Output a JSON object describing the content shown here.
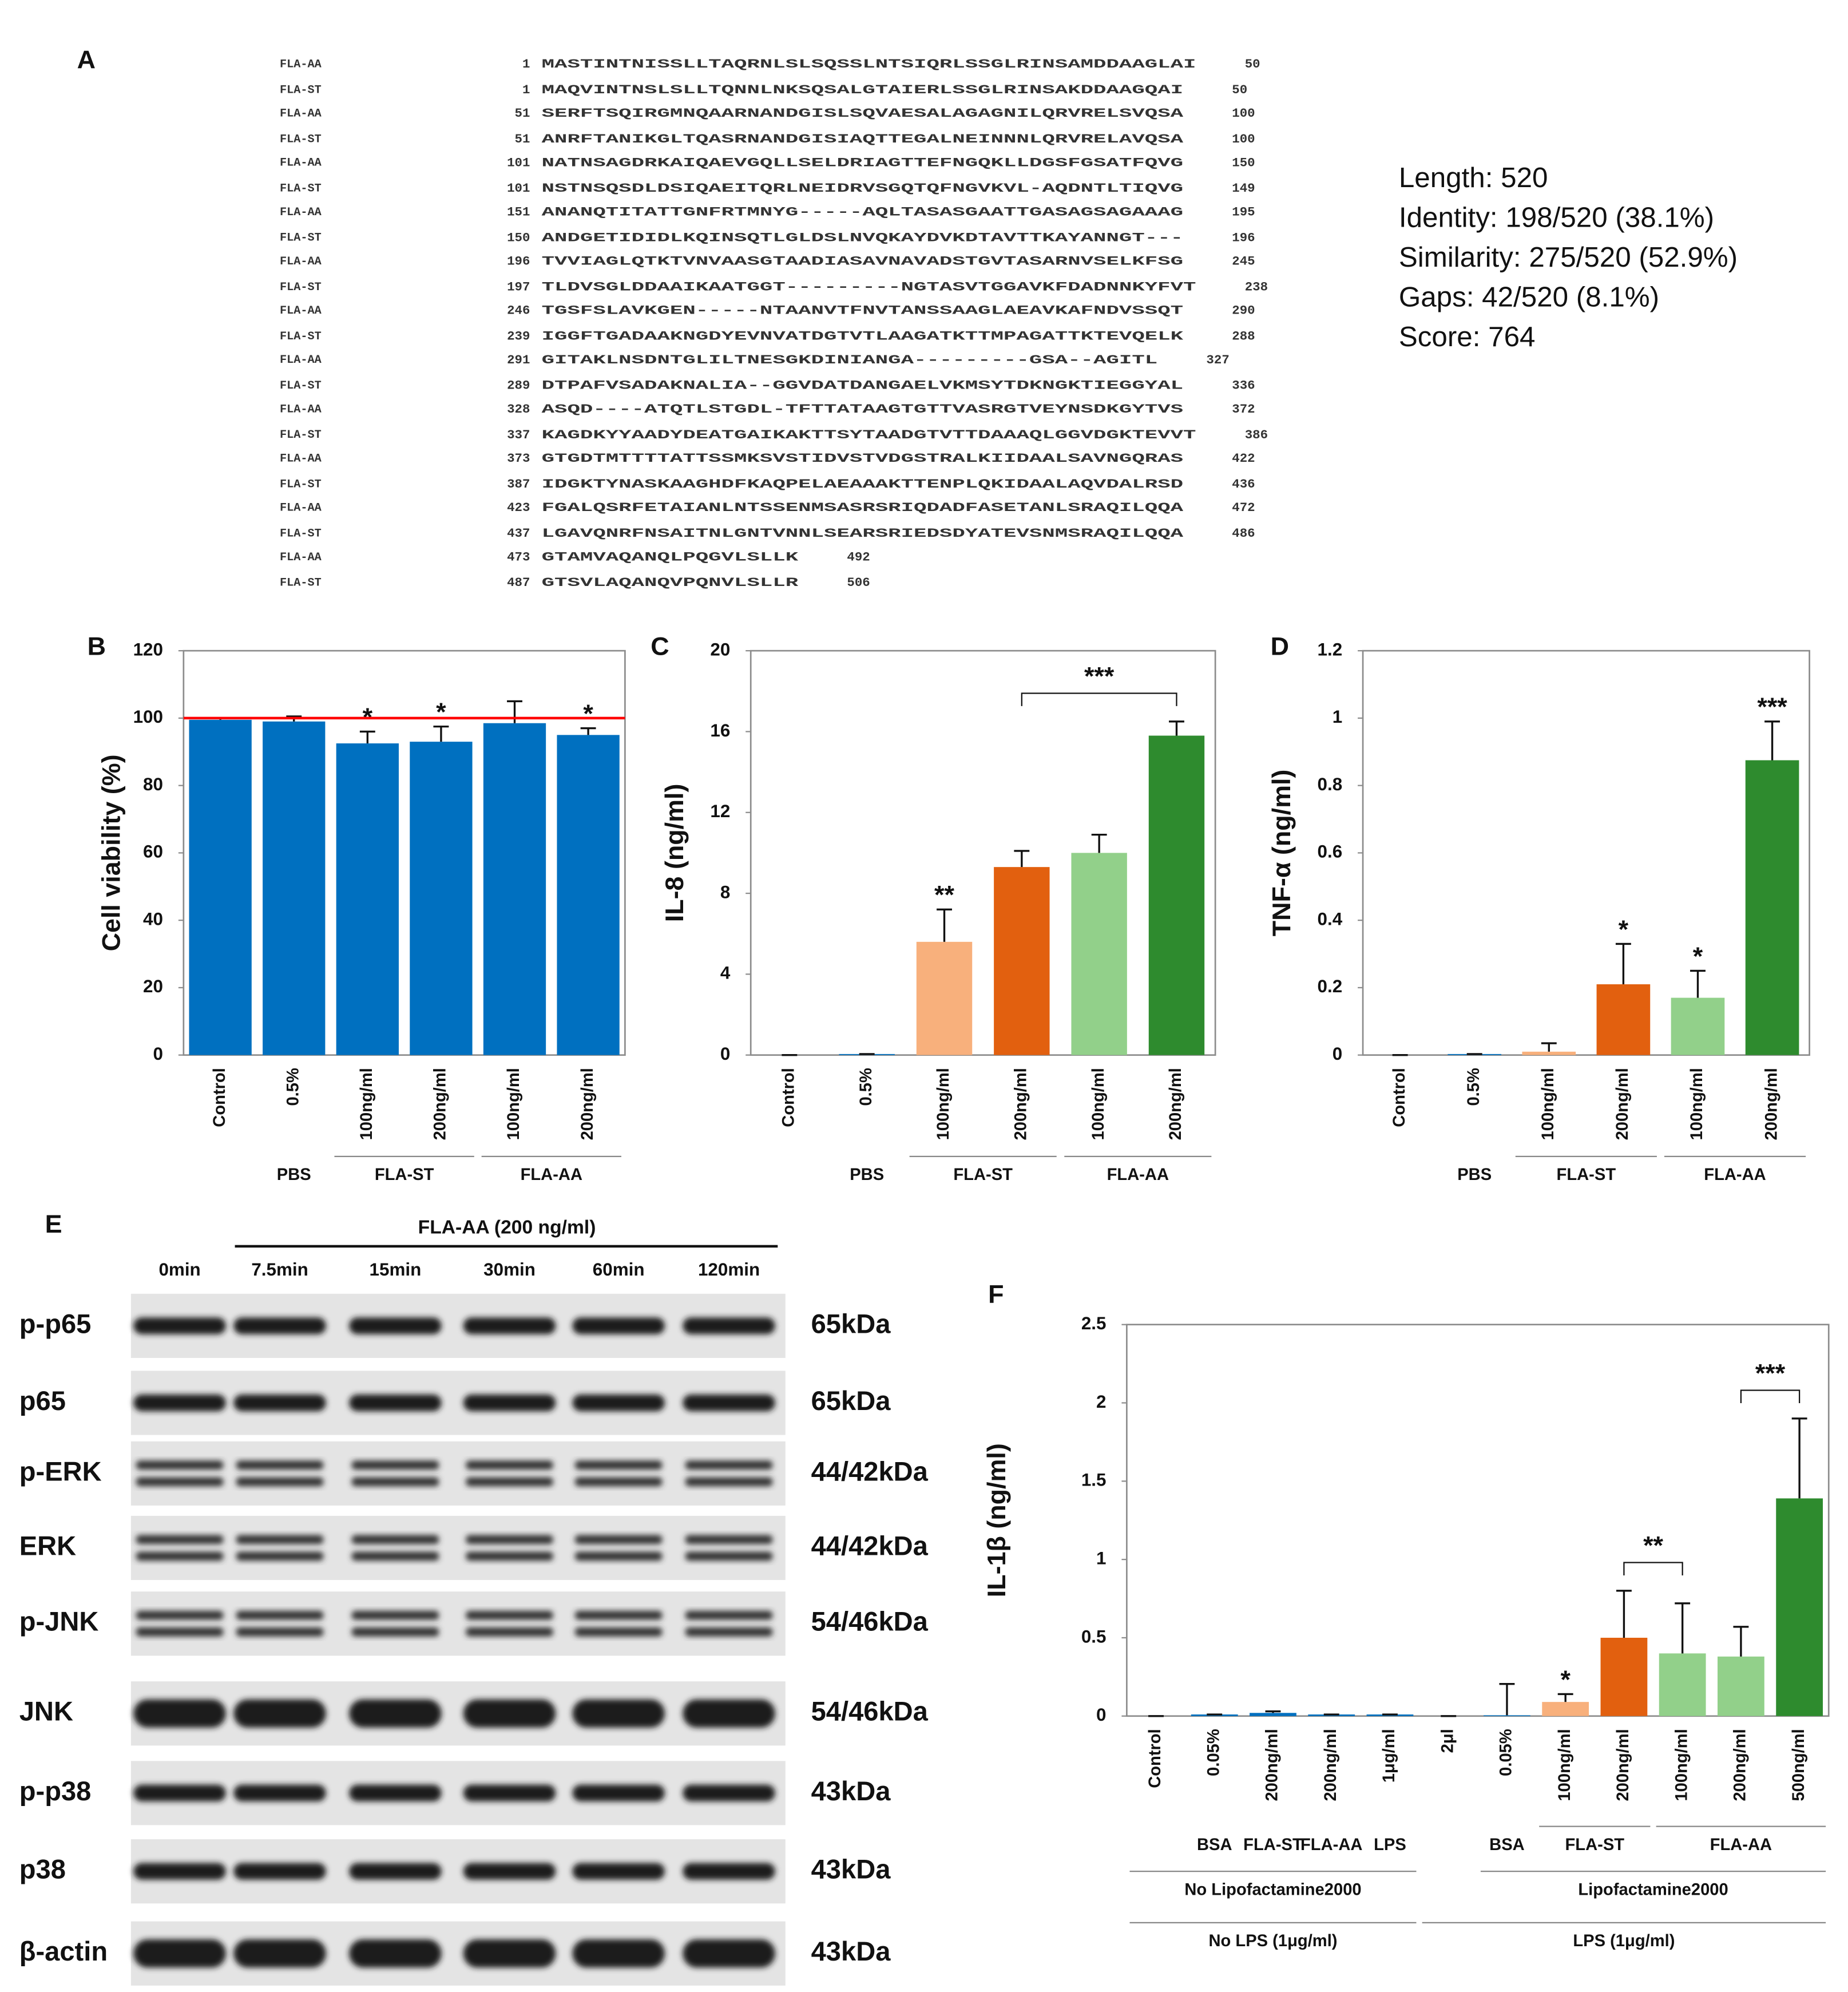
{
  "panel_a": {
    "label": "A",
    "rows": [
      {
        "name": "FLA-AA",
        "start": 1,
        "sequence": "MASTINTNISSLLTAQRNLSLSQSSLNTSIQRLSSGLRINSAMDDAAGLAI",
        "end": 50
      },
      {
        "name": "FLA-ST",
        "start": 1,
        "sequence": "MAQVINTNSLSLLTQNNLNKSQSALGTAIERLSSGLRINSAKDDAAGQAI",
        "end": 50
      },
      {
        "name": "FLA-AA",
        "start": 51,
        "sequence": "SERFTSQIRGMNQAARNANDGISLSQVAESALAGAGNILQRVRELSVQSA",
        "end": 100
      },
      {
        "name": "FLA-ST",
        "start": 51,
        "sequence": "ANRFTANIKGLTQASRNANDGISIAQTTEGALNEINNNLQRVRELAVQSA",
        "end": 100
      },
      {
        "name": "FLA-AA",
        "start": 101,
        "sequence": "NATNSAGDRKAIQAEVGQLLSELDRIAGTTEFNGQKLLDGSFGSATFQVG",
        "end": 150
      },
      {
        "name": "FLA-ST",
        "start": 101,
        "sequence": "NSTNSQSDLDSIQAEITQRLNEIDRVSGQTQFNGVKVL-AQDNTLTIQVG",
        "end": 149
      },
      {
        "name": "FLA-AA",
        "start": 151,
        "sequence": "ANANQTITATTGNFRTMNYG-----AQLTASASGAATTGASAGSAGAAAG",
        "end": 195
      },
      {
        "name": "FLA-ST",
        "start": 150,
        "sequence": "ANDGETIDIDLKQINSQTLGLDSLNVQKAYDVKDTAVTTKAYANNGT---",
        "end": 196
      },
      {
        "name": "FLA-AA",
        "start": 196,
        "sequence": "TVVIAGLQTKTVNVAASGTAADIASAVNAVADSTGVTASARNVSELKFSG",
        "end": 245
      },
      {
        "name": "FLA-ST",
        "start": 197,
        "sequence": "TLDVSGLDDAAIKAATGGT---------NGTASVTGGAVKFDADNNKYFVT",
        "end": 238
      },
      {
        "name": "FLA-AA",
        "start": 246,
        "sequence": "TGSFSLAVKGEN-----NTAANVTFNVTANSSAAGLAEAVKAFNDVSSQT",
        "end": 290
      },
      {
        "name": "FLA-ST",
        "start": 239,
        "sequence": "IGGFTGADAAKNGDYEVNVATDGTVTLAAGATKTTMPAGATTKTEVQELK",
        "end": 288
      },
      {
        "name": "FLA-AA",
        "start": 291,
        "sequence": "GITAKLNSDNTGLILTNESGKDINIANGA---------GSA--AGITL",
        "end": 327
      },
      {
        "name": "FLA-ST",
        "start": 289,
        "sequence": "DTPAFVSADAKNALIA--GGVDATDANGAELVKMSYTDKNGKTIEGGYAL",
        "end": 336
      },
      {
        "name": "FLA-AA",
        "start": 328,
        "sequence": "ASQD----ATQTLSTGDL-TFTTATAAGTGTTVASRGTVEYNSDKGYTVS",
        "end": 372
      },
      {
        "name": "FLA-ST",
        "start": 337,
        "sequence": "KAGDKYYAADYDEATGAIKAKTTSYTAADGTVTTDAAAQLGGVDGKTEVVT",
        "end": 386
      },
      {
        "name": "FLA-AA",
        "start": 373,
        "sequence": "GTGDTMTTTTATTSSMKSVSTIDVSTVDGSTRALKIIDAALSAVNGQRAS",
        "end": 422
      },
      {
        "name": "FLA-ST",
        "start": 387,
        "sequence": "IDGKTYNASKAAGHDFKAQPELAEAAAKTTENPLQKIDAALAQVDALRSD",
        "end": 436
      },
      {
        "name": "FLA-AA",
        "start": 423,
        "sequence": "FGALQSRFETAIANLNTSSENMSASRSRIQDADFASETANLSRAQILQQA",
        "end": 472
      },
      {
        "name": "FLA-ST",
        "start": 437,
        "sequence": "LGAVQNRFNSAITNLGNTVNNLSEARSRIEDSDYATEVSNMSRAQILQQA",
        "end": 486
      },
      {
        "name": "FLA-AA",
        "start": 473,
        "sequence": "GTAMVAQANQLPQGVLSLLK",
        "end": 492
      },
      {
        "name": "FLA-ST",
        "start": 487,
        "sequence": "GTSVLAQANQVPQNVLSLLR",
        "end": 506
      }
    ],
    "stats": [
      "Length: 520",
      "Identity: 198/520 (38.1%)",
      "Similarity: 275/520 (52.9%)",
      "Gaps: 42/520 (8.1%)",
      "Score: 764"
    ]
  },
  "chart_data": [
    {
      "type": "bar",
      "panel_label": "B",
      "y_label": "Cell viability (%)",
      "categories": [
        "Control",
        "0.5%",
        "100ng/ml",
        "200ng/ml",
        "100ng/ml",
        "200ng/ml"
      ],
      "values": [
        99.5,
        99,
        92.5,
        93,
        98.5,
        95
      ],
      "errors": [
        0.5,
        1.5,
        3.5,
        4.5,
        6.5,
        2
      ],
      "colors": [
        "#0070c0",
        "#0070c0",
        "#0070c0",
        "#0070c0",
        "#0070c0",
        "#0070c0"
      ],
      "significance": [
        null,
        null,
        "*",
        "*",
        null,
        "*"
      ],
      "reference_line": {
        "value": 100,
        "color": "#ff0000"
      },
      "group_rows": [
        [
          {
            "label": "PBS",
            "categories": [
              1
            ]
          },
          {
            "label": "FLA-ST",
            "categories": [
              2,
              3
            ]
          },
          {
            "label": "FLA-AA",
            "categories": [
              4,
              5
            ]
          }
        ]
      ],
      "ylim": [
        0,
        120
      ],
      "yticks": [
        0,
        20,
        40,
        60,
        80,
        100,
        120
      ]
    },
    {
      "type": "bar",
      "panel_label": "C",
      "y_label": "IL-8 (ng/ml)",
      "categories": [
        "Control",
        "0.5%",
        "100ng/ml",
        "200ng/ml",
        "100ng/ml",
        "200ng/ml"
      ],
      "values": [
        0,
        0.05,
        5.6,
        9.3,
        10,
        15.8
      ],
      "errors": [
        0,
        0,
        1.6,
        0.8,
        0.9,
        0.7
      ],
      "colors": [
        "#0070c0",
        "#0070c0",
        "#f8b07c",
        "#e2600f",
        "#92d08a",
        "#2e8b2e"
      ],
      "significance": [
        null,
        null,
        "**",
        null,
        null,
        null
      ],
      "brackets": [
        {
          "text": "***",
          "categories": [
            3,
            5
          ]
        }
      ],
      "group_rows": [
        [
          {
            "label": "PBS",
            "categories": [
              1
            ]
          },
          {
            "label": "FLA-ST",
            "categories": [
              2,
              3
            ]
          },
          {
            "label": "FLA-AA",
            "categories": [
              4,
              5
            ]
          }
        ]
      ],
      "ylim": [
        0,
        20
      ],
      "yticks": [
        0,
        4,
        8,
        12,
        16,
        20
      ]
    },
    {
      "type": "bar",
      "panel_label": "D",
      "y_label": "TNF-α (ng/ml)",
      "categories": [
        "Control",
        "0.5%",
        "100ng/ml",
        "200ng/ml",
        "100ng/ml",
        "200ng/ml"
      ],
      "values": [
        0,
        0.003,
        0.01,
        0.21,
        0.17,
        0.875
      ],
      "errors": [
        0,
        0,
        0.025,
        0.12,
        0.08,
        0.115
      ],
      "colors": [
        "#0070c0",
        "#0070c0",
        "#f8b07c",
        "#e2600f",
        "#92d08a",
        "#2e8b2e"
      ],
      "significance": [
        null,
        null,
        null,
        "*",
        "*",
        "***"
      ],
      "group_rows": [
        [
          {
            "label": "PBS",
            "categories": [
              1
            ]
          },
          {
            "label": "FLA-ST",
            "categories": [
              2,
              3
            ]
          },
          {
            "label": "FLA-AA",
            "categories": [
              4,
              5
            ]
          }
        ]
      ],
      "ylim": [
        0,
        1.2
      ],
      "yticks": [
        0,
        0.2,
        0.4,
        0.6,
        0.8,
        1,
        1.2
      ]
    },
    {
      "type": "bar",
      "panel_label": "F",
      "y_label": "IL-1β (ng/ml)",
      "categories": [
        "Control",
        "0.05%",
        "200ng/ml",
        "200ng/ml",
        "1μg/ml",
        "2μl",
        "0.05%",
        "100ng/ml",
        "200ng/ml",
        "100ng/ml",
        "200ng/ml",
        "500ng/ml"
      ],
      "values": [
        0,
        0.01,
        0.02,
        0.01,
        0.01,
        0,
        0.005,
        0.09,
        0.5,
        0.4,
        0.38,
        1.39
      ],
      "errors": [
        0,
        0,
        0.01,
        0,
        0,
        0,
        0.2,
        0.05,
        0.3,
        0.32,
        0.19,
        0.51
      ],
      "colors": [
        "#0070c0",
        "#0070c0",
        "#0070c0",
        "#0070c0",
        "#0070c0",
        "#0070c0",
        "#0070c0",
        "#f8b07c",
        "#e2600f",
        "#92d08a",
        "#92d08a",
        "#2e8b2e"
      ],
      "significance": [
        null,
        null,
        null,
        null,
        null,
        null,
        null,
        "*",
        null,
        null,
        null,
        null
      ],
      "brackets": [
        {
          "text": "**",
          "categories": [
            8,
            9
          ]
        },
        {
          "text": "***",
          "categories": [
            10,
            11
          ]
        }
      ],
      "group_rows": [
        [
          {
            "label": "BSA",
            "categories": [
              1
            ]
          },
          {
            "label": "FLA-ST",
            "categories": [
              2
            ]
          },
          {
            "label": "FLA-AA",
            "categories": [
              3
            ]
          },
          {
            "label": "LPS",
            "categories": [
              4
            ]
          },
          {
            "label": "BSA",
            "categories": [
              6
            ]
          },
          {
            "label": "FLA-ST",
            "categories": [
              7,
              8
            ]
          },
          {
            "label": "FLA-AA",
            "categories": [
              9,
              10,
              11
            ]
          }
        ],
        [
          {
            "label": "No Lipofactamine2000",
            "categories": [
              0,
              1,
              2,
              3,
              4
            ]
          },
          {
            "label": "Lipofactamine2000",
            "categories": [
              6,
              7,
              8,
              9,
              10,
              11
            ]
          }
        ],
        [
          {
            "label": "No LPS (1μg/ml)",
            "categories": [
              0,
              1,
              2,
              3,
              4
            ]
          },
          {
            "label": "LPS (1μg/ml)",
            "categories": [
              5,
              6,
              7,
              8,
              9,
              10,
              11
            ]
          }
        ]
      ],
      "ylim": [
        0,
        2.5
      ],
      "yticks": [
        0,
        0.5,
        1,
        1.5,
        2,
        2.5
      ]
    }
  ],
  "panel_e": {
    "label": "E",
    "treatment": "FLA-AA (200 ng/ml)",
    "times": [
      "0min",
      "7.5min",
      "15min",
      "30min",
      "60min",
      "120min"
    ],
    "rows": [
      {
        "protein": "p-p65",
        "size": "65kDa"
      },
      {
        "protein": "p65",
        "size": "65kDa"
      },
      {
        "protein": "p-ERK",
        "size": "44/42kDa"
      },
      {
        "protein": "ERK",
        "size": "44/42kDa"
      },
      {
        "protein": "p-JNK",
        "size": "54/46kDa"
      },
      {
        "protein": "JNK",
        "size": "54/46kDa"
      },
      {
        "protein": "p-p38",
        "size": "43kDa"
      },
      {
        "protein": "p38",
        "size": "43kDa"
      },
      {
        "protein": "β-actin",
        "size": "43kDa"
      }
    ]
  }
}
